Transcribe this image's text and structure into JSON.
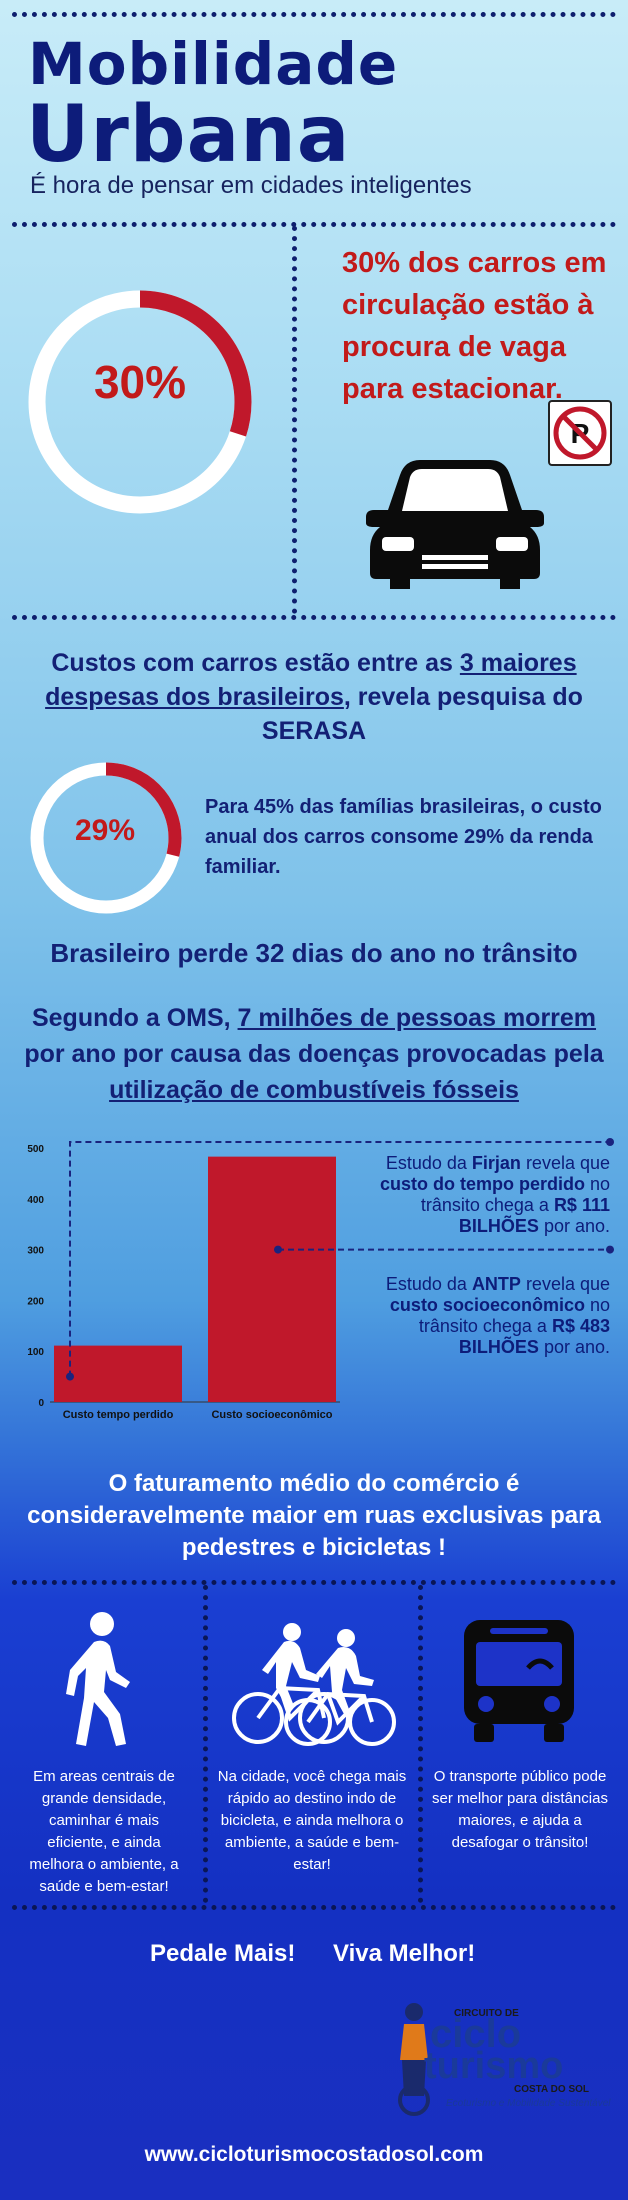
{
  "header": {
    "title_line1": "Mobilidade",
    "title_line2": "Urbana",
    "subtitle": "É hora de pensar em cidades inteligentes"
  },
  "parking": {
    "percent_label": "30%",
    "percent_value": 30,
    "statement": "30% dos carros em circulação estão à procura de vaga para estacionar.",
    "no_parking_letter": "P"
  },
  "costs": {
    "pre": "Custos com carros estão entre as ",
    "link": "3 maiores despesas dos brasileiros",
    "post": ", revela pesquisa do SERASA",
    "percent_label": "29%",
    "percent_value": 29,
    "family_text": "Para 45% das famílias brasileiras, o custo anual dos carros consome 29% da renda familiar."
  },
  "traffic": {
    "headline": "Brasileiro perde 32 dias do ano no trânsito"
  },
  "oms": {
    "pre": "Segundo a OMS, ",
    "link1": "7 milhões de pessoas morrem",
    "mid": " por ano por causa das doenças provocadas pela ",
    "link2": "utilização de combustíveis fósseis"
  },
  "chart_data": {
    "type": "bar",
    "categories": [
      "Custo tempo perdido",
      "Custo socioeconômico"
    ],
    "values": [
      111,
      483
    ],
    "ylim": [
      0,
      500
    ],
    "yticks": [
      0,
      100,
      200,
      300,
      400,
      500
    ],
    "bar_color": "#c0182b",
    "grid": false,
    "annotations": [
      {
        "p1": "Estudo da ",
        "b1": "Firjan",
        "p2": " revela que ",
        "b2": "custo do tempo perdido",
        "p3": " no trânsito chega a ",
        "b3": "R$ 111 BILHÕES",
        "p4": " por ano."
      },
      {
        "p1": "Estudo da ",
        "b1": "ANTP",
        "p2": " revela que ",
        "b2": "custo socioeconômico",
        "p3": " no trânsito chega a ",
        "b3": "R$ 483 BILHÕES",
        "p4": " por ano."
      }
    ]
  },
  "commerce": {
    "headline": "O faturamento médio do comércio é consideravelmente maior em ruas exclusivas para pedestres e bicicletas !"
  },
  "modes": [
    {
      "icon": "walking-person-icon",
      "text": "Em areas centrais de grande densidade, caminhar é mais eficiente, e ainda melhora o ambiente, a saúde e bem-estar!"
    },
    {
      "icon": "cyclists-icon",
      "text": "Na cidade, você chega mais rápido ao destino indo de bicicleta, e ainda melhora o ambiente, a saúde e bem-estar!"
    },
    {
      "icon": "bus-icon",
      "text": "O transporte público pode ser melhor para distâncias maiores, e ajuda a desafogar o trânsito!"
    }
  ],
  "slogan": {
    "left": "Pedale Mais!",
    "right": "Viva Melhor!"
  },
  "logo": {
    "top": "CIRCUITO DE",
    "word1": "ciclo",
    "word2": "turismo",
    "region": "COSTA DO SOL",
    "tagline": "Ecoturismo e Mobilidade Sustentável"
  },
  "footer": {
    "url": "www.cicloturismocostadosol.com"
  },
  "colors": {
    "navy": "#0d1c7a",
    "red": "#c21a1a",
    "white": "#ffffff"
  }
}
